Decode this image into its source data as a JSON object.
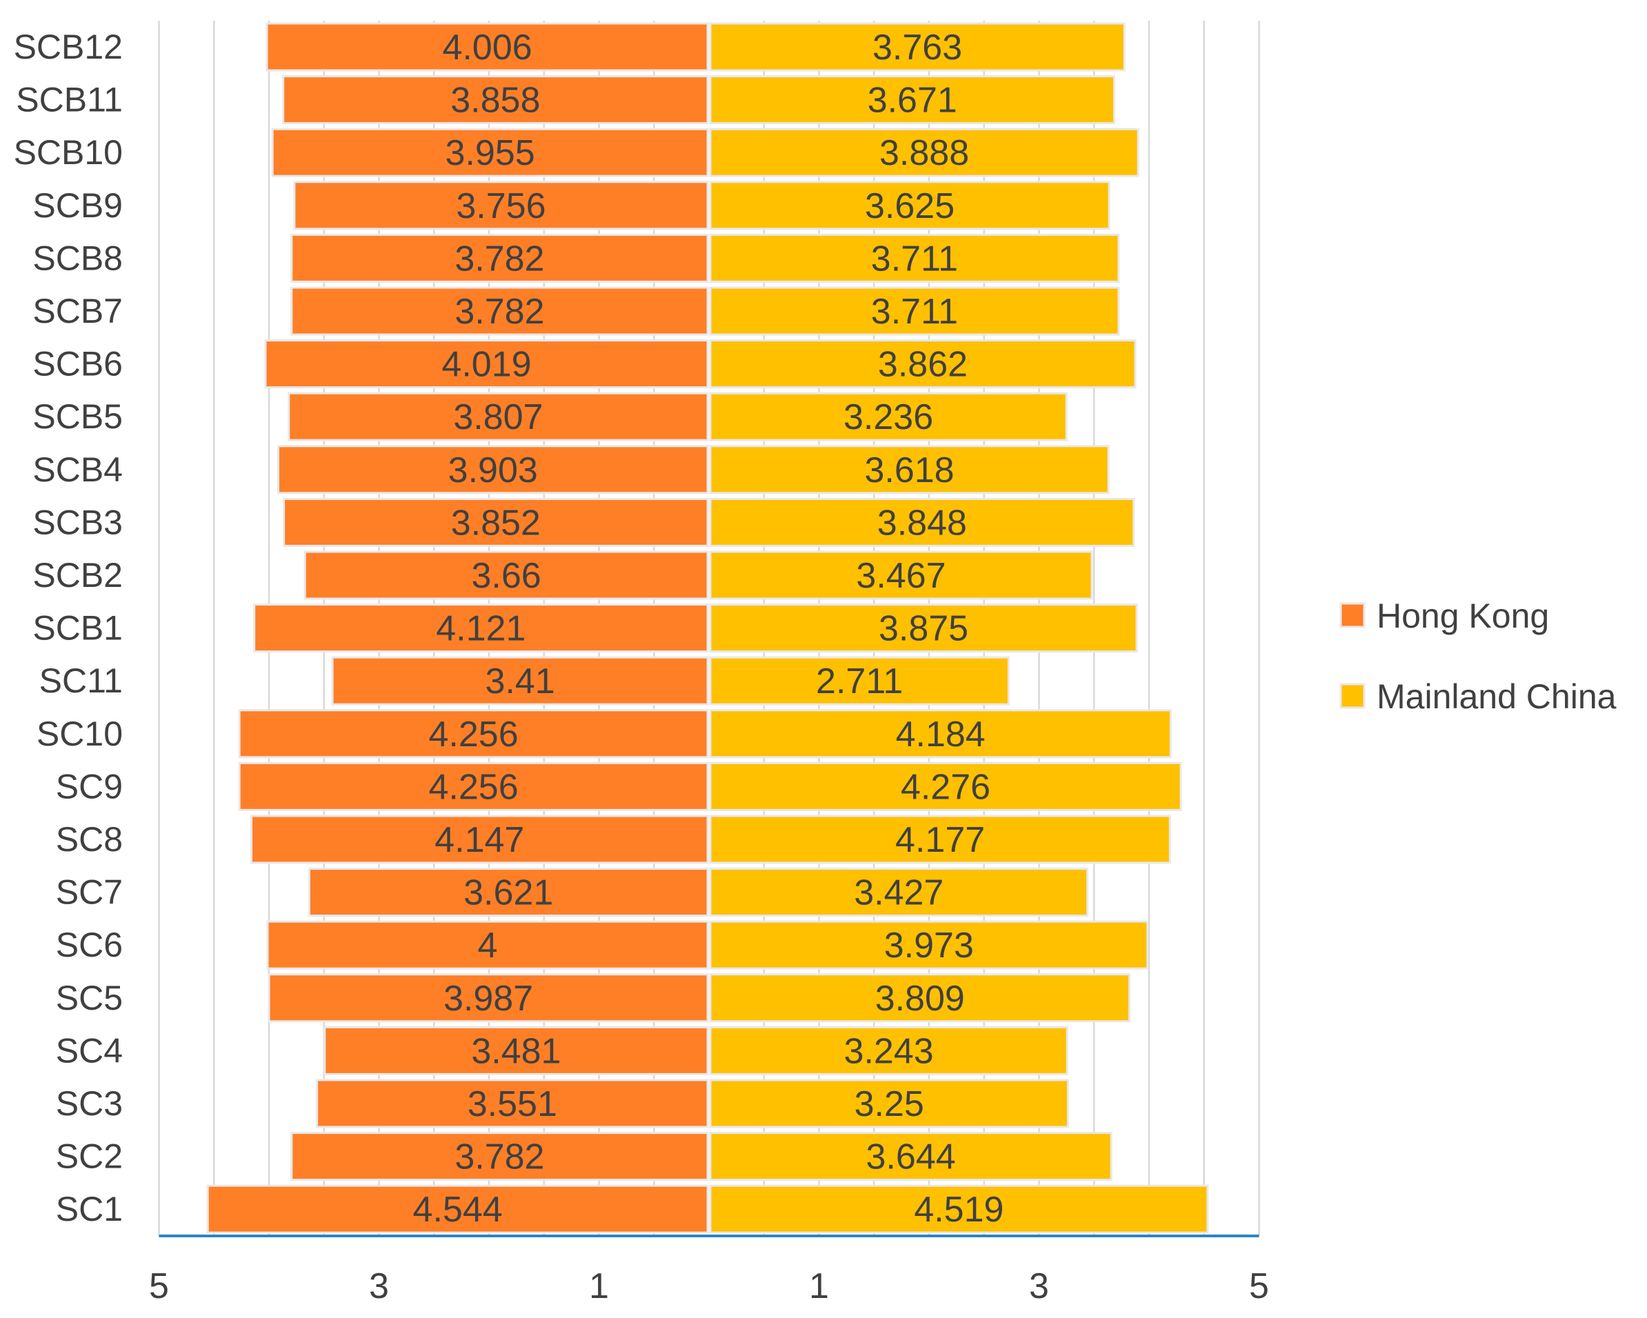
{
  "chart_data": {
    "type": "bar",
    "orientation": "horizontal-diverging",
    "title": "",
    "xlabel": "",
    "ylabel": "",
    "xlim": [
      5,
      0,
      5
    ],
    "x_ticks": [
      "5",
      "3",
      "1",
      "1",
      "3",
      "5"
    ],
    "categories": [
      "SCB12",
      "SCB11",
      "SCB10",
      "SCB9",
      "SCB8",
      "SCB7",
      "SCB6",
      "SCB5",
      "SCB4",
      "SCB3",
      "SCB2",
      "SCB1",
      "SC11",
      "SC10",
      "SC9",
      "SC8",
      "SC7",
      "SC6",
      "SC5",
      "SC4",
      "SC3",
      "SC2",
      "SC1"
    ],
    "series": [
      {
        "name": "Hong Kong",
        "color": "#FF7F27",
        "side": "left",
        "values": [
          4.006,
          3.858,
          3.955,
          3.756,
          3.782,
          3.782,
          4.019,
          3.807,
          3.903,
          3.852,
          3.66,
          4.121,
          3.41,
          4.256,
          4.256,
          4.147,
          3.621,
          4,
          3.987,
          3.481,
          3.551,
          3.782,
          4.544
        ],
        "labels": [
          "4.006",
          "3.858",
          "3.955",
          "3.756",
          "3.782",
          "3.782",
          "4.019",
          "3.807",
          "3.903",
          "3.852",
          "3.66",
          "4.121",
          "3.41",
          "4.256",
          "4.256",
          "4.147",
          "3.621",
          "4",
          "3.987",
          "3.481",
          "3.551",
          "3.782",
          "4.544"
        ]
      },
      {
        "name": "Mainland China",
        "color": "#FFC000",
        "side": "right",
        "values": [
          3.763,
          3.671,
          3.888,
          3.625,
          3.711,
          3.711,
          3.862,
          3.236,
          3.618,
          3.848,
          3.467,
          3.875,
          2.711,
          4.184,
          4.276,
          4.177,
          3.427,
          3.973,
          3.809,
          3.243,
          3.25,
          3.644,
          4.519
        ],
        "labels": [
          "3.763",
          "3.671",
          "3.888",
          "3.625",
          "3.711",
          "3.711",
          "3.862",
          "3.236",
          "3.618",
          "3.848",
          "3.467",
          "3.875",
          "2.711",
          "4.184",
          "4.276",
          "4.177",
          "3.427",
          "3.973",
          "3.809",
          "3.243",
          "3.25",
          "3.644",
          "4.519"
        ]
      }
    ],
    "gridlines": true,
    "legend_position": "right",
    "colors": {
      "axis": "#2E86C1",
      "grid": "#D9D9D9",
      "text": "#404040",
      "bar_edge": "#E8E8E8"
    }
  }
}
